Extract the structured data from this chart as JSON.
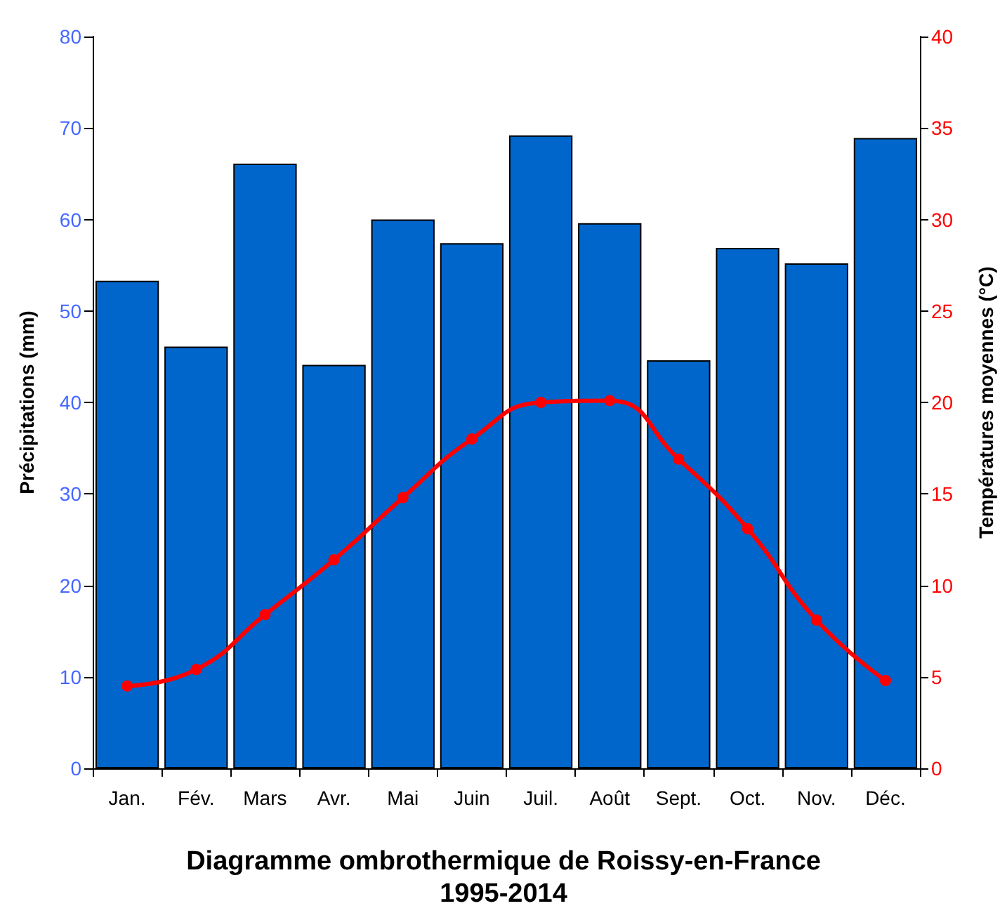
{
  "chart_data": {
    "type": "bar",
    "title": "Diagramme ombrothermique de Roissy-en-France",
    "subtitle": "1995-2014",
    "ylabel": "Précipitations (mm)",
    "y2label": "Températures moyennes (°C)",
    "categories": [
      "Jan.",
      "Fév.",
      "Mars",
      "Avr.",
      "Mai",
      "Juin",
      "Juil.",
      "Août",
      "Sept.",
      "Oct.",
      "Nov.",
      "Déc."
    ],
    "series": [
      {
        "color": "#0066cc",
        "values": [
          53.3,
          46.1,
          66.1,
          44.1,
          60.0,
          57.4,
          69.2,
          59.6,
          44.6,
          56.9,
          55.2,
          68.9
        ]
      },
      {
        "type": "line",
        "axis": "y2",
        "color": "#ff0000",
        "values": [
          4.5,
          5.4,
          8.4,
          11.4,
          14.8,
          18.0,
          20.0,
          20.1,
          16.9,
          13.1,
          8.1,
          4.8
        ]
      }
    ],
    "ylim": [
      0,
      80
    ],
    "yticks": [
      0,
      10,
      20,
      30,
      40,
      50,
      60,
      70,
      80
    ],
    "y2lim": [
      0,
      40
    ],
    "y2ticks": [
      0,
      5,
      10,
      15,
      20,
      25,
      30,
      35,
      40
    ],
    "marker": "circle",
    "line_style": "solid"
  }
}
